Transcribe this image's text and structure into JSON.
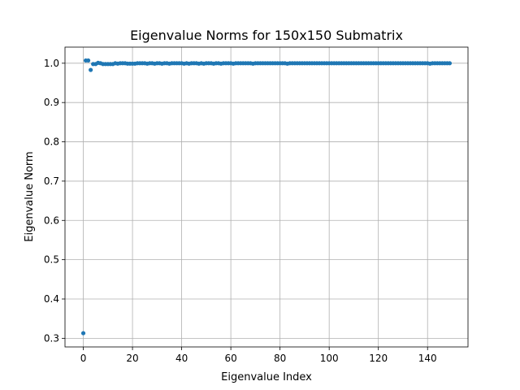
{
  "chart_data": {
    "type": "scatter",
    "title": "Eigenvalue Norms for 150x150 Submatrix",
    "xlabel": "Eigenvalue Index",
    "ylabel": "Eigenvalue Norm",
    "xlim": [
      -7.45,
      156.45
    ],
    "ylim": [
      0.278,
      1.041
    ],
    "xticks": [
      0,
      20,
      40,
      60,
      80,
      100,
      120,
      140
    ],
    "yticks": [
      0.3,
      0.4,
      0.5,
      0.6,
      0.7,
      0.8,
      0.9,
      1.0
    ],
    "xtick_labels": [
      "0",
      "20",
      "40",
      "60",
      "80",
      "100",
      "120",
      "140"
    ],
    "ytick_labels": [
      "0.3",
      "0.4",
      "0.5",
      "0.6",
      "0.7",
      "0.8",
      "0.9",
      "1.0"
    ],
    "grid": true,
    "legend": "none",
    "marker_color": "#1f77b4",
    "series": [
      {
        "x": [
          0,
          1,
          2,
          3,
          4,
          5,
          6,
          7,
          8,
          9,
          10,
          11,
          12,
          13,
          14,
          15,
          16,
          17,
          18,
          19,
          20,
          21,
          22,
          23,
          24,
          25,
          26,
          27,
          28,
          29,
          30,
          31,
          32,
          33,
          34,
          35,
          36,
          37,
          38,
          39,
          40,
          41,
          42,
          43,
          44,
          45,
          46,
          47,
          48,
          49,
          50,
          51,
          52,
          53,
          54,
          55,
          56,
          57,
          58,
          59,
          60,
          61,
          62,
          63,
          64,
          65,
          66,
          67,
          68,
          69,
          70,
          71,
          72,
          73,
          74,
          75,
          76,
          77,
          78,
          79,
          80,
          81,
          82,
          83,
          84,
          85,
          86,
          87,
          88,
          89,
          90,
          91,
          92,
          93,
          94,
          95,
          96,
          97,
          98,
          99,
          100,
          101,
          102,
          103,
          104,
          105,
          106,
          107,
          108,
          109,
          110,
          111,
          112,
          113,
          114,
          115,
          116,
          117,
          118,
          119,
          120,
          121,
          122,
          123,
          124,
          125,
          126,
          127,
          128,
          129,
          130,
          131,
          132,
          133,
          134,
          135,
          136,
          137,
          138,
          139,
          140,
          141,
          142,
          143,
          144,
          145,
          146,
          147,
          148,
          149
        ],
        "y": [
          0.313,
          1.007,
          1.007,
          0.983,
          0.998,
          0.998,
          1.001,
          1.0,
          0.998,
          0.998,
          0.998,
          0.998,
          0.998,
          1.0,
          0.999,
          1.0,
          1.0,
          1.0,
          0.999,
          0.999,
          0.999,
          0.999,
          1.0,
          1.0,
          1.0,
          1.0,
          0.999,
          1.0,
          1.0,
          0.999,
          1.0,
          1.0,
          0.999,
          1.0,
          1.0,
          0.999,
          1.0,
          1.0,
          1.0,
          1.0,
          1.0,
          0.999,
          1.0,
          0.999,
          1.0,
          1.0,
          1.0,
          0.999,
          1.0,
          0.999,
          1.0,
          1.0,
          1.0,
          0.999,
          1.0,
          1.0,
          0.999,
          1.0,
          1.0,
          1.0,
          1.0,
          0.999,
          1.0,
          1.0,
          1.0,
          1.0,
          1.0,
          1.0,
          1.0,
          0.999,
          1.0,
          1.0,
          1.0,
          1.0,
          1.0,
          1.0,
          1.0,
          1.0,
          1.0,
          1.0,
          1.0,
          1.0,
          1.0,
          0.999,
          1.0,
          1.0,
          1.0,
          1.0,
          1.0,
          1.0,
          1.0,
          1.0,
          1.0,
          1.0,
          1.0,
          1.0,
          1.0,
          1.0,
          1.0,
          1.0,
          1.0,
          1.0,
          1.0,
          1.0,
          1.0,
          1.0,
          1.0,
          1.0,
          1.0,
          1.0,
          1.0,
          1.0,
          1.0,
          1.0,
          1.0,
          1.0,
          1.0,
          1.0,
          1.0,
          1.0,
          1.0,
          1.0,
          1.0,
          1.0,
          1.0,
          1.0,
          1.0,
          1.0,
          1.0,
          1.0,
          1.0,
          1.0,
          1.0,
          1.0,
          1.0,
          1.0,
          1.0,
          1.0,
          1.0,
          1.0,
          1.0,
          0.999,
          1.0,
          1.0,
          1.0,
          1.0,
          1.0,
          1.0,
          1.0,
          1.0
        ]
      }
    ]
  }
}
